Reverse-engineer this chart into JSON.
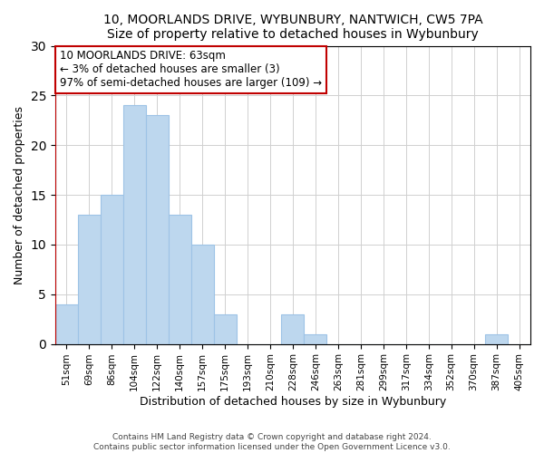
{
  "title1": "10, MOORLANDS DRIVE, WYBUNBURY, NANTWICH, CW5 7PA",
  "title2": "Size of property relative to detached houses in Wybunbury",
  "xlabel": "Distribution of detached houses by size in Wybunbury",
  "ylabel": "Number of detached properties",
  "bar_labels": [
    "51sqm",
    "69sqm",
    "86sqm",
    "104sqm",
    "122sqm",
    "140sqm",
    "157sqm",
    "175sqm",
    "193sqm",
    "210sqm",
    "228sqm",
    "246sqm",
    "263sqm",
    "281sqm",
    "299sqm",
    "317sqm",
    "334sqm",
    "352sqm",
    "370sqm",
    "387sqm",
    "405sqm"
  ],
  "bar_values": [
    4,
    13,
    15,
    24,
    23,
    13,
    10,
    3,
    0,
    0,
    3,
    1,
    0,
    0,
    0,
    0,
    0,
    0,
    0,
    1,
    0
  ],
  "bar_color": "#bdd7ee",
  "bar_edge_color": "#9dc3e6",
  "vline_color": "#c00000",
  "vline_x": -0.5,
  "ylim": [
    0,
    30
  ],
  "yticks": [
    0,
    5,
    10,
    15,
    20,
    25,
    30
  ],
  "annotation_line1": "10 MOORLANDS DRIVE: 63sqm",
  "annotation_line2": "← 3% of detached houses are smaller (3)",
  "annotation_line3": "97% of semi-detached houses are larger (109) →",
  "annotation_box_color": "#ffffff",
  "annotation_box_edge": "#c00000",
  "footer1": "Contains HM Land Registry data © Crown copyright and database right 2024.",
  "footer2": "Contains public sector information licensed under the Open Government Licence v3.0."
}
